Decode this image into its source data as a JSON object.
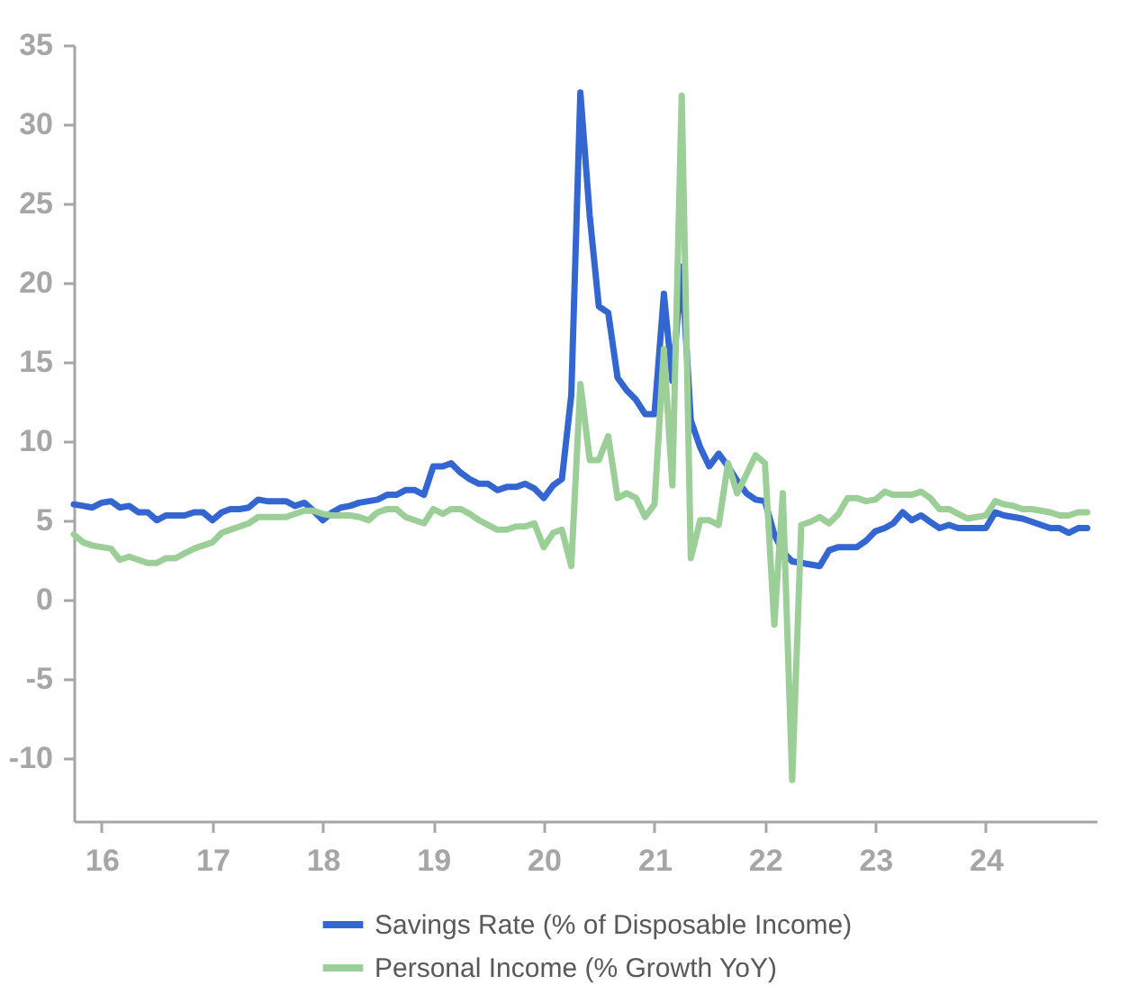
{
  "chart_data": {
    "type": "line",
    "x": [
      "2015-10",
      "2015-11",
      "2015-12",
      "2016-01",
      "2016-02",
      "2016-03",
      "2016-04",
      "2016-05",
      "2016-06",
      "2016-07",
      "2016-08",
      "2016-09",
      "2016-10",
      "2016-11",
      "2016-12",
      "2017-01",
      "2017-02",
      "2017-03",
      "2017-04",
      "2017-05",
      "2017-06",
      "2017-07",
      "2017-08",
      "2017-09",
      "2017-10",
      "2017-11",
      "2017-12",
      "2018-01",
      "2018-02",
      "2018-03",
      "2018-04",
      "2018-05",
      "2018-06",
      "2018-07",
      "2018-08",
      "2018-09",
      "2018-10",
      "2018-11",
      "2018-12",
      "2019-01",
      "2019-02",
      "2019-03",
      "2019-04",
      "2019-05",
      "2019-06",
      "2019-07",
      "2019-08",
      "2019-09",
      "2019-10",
      "2019-11",
      "2019-12",
      "2020-01",
      "2020-02",
      "2020-03",
      "2020-04",
      "2020-05",
      "2020-06",
      "2020-07",
      "2020-08",
      "2020-09",
      "2020-10",
      "2020-11",
      "2020-12",
      "2021-01",
      "2021-02",
      "2021-03",
      "2021-04",
      "2021-05",
      "2021-06",
      "2021-07",
      "2021-08",
      "2021-09",
      "2021-10",
      "2021-11",
      "2021-12",
      "2022-01",
      "2022-02",
      "2022-03",
      "2022-04",
      "2022-05",
      "2022-06",
      "2022-07",
      "2022-08",
      "2022-09",
      "2022-10",
      "2022-11",
      "2022-12",
      "2023-01",
      "2023-02",
      "2023-03",
      "2023-04",
      "2023-05",
      "2023-06",
      "2023-07",
      "2023-08",
      "2023-09",
      "2023-10",
      "2023-11",
      "2023-12",
      "2024-01",
      "2024-02",
      "2024-03",
      "2024-04",
      "2024-05",
      "2024-06",
      "2024-07",
      "2024-08",
      "2024-09",
      "2024-10",
      "2024-11",
      "2024-12"
    ],
    "series": [
      {
        "name": "Savings Rate (% of Disposable Income)",
        "color": "#3366d0",
        "values": [
          6.0,
          5.9,
          5.8,
          6.1,
          6.2,
          5.8,
          5.9,
          5.5,
          5.5,
          5.0,
          5.3,
          5.3,
          5.3,
          5.5,
          5.5,
          5.0,
          5.5,
          5.7,
          5.7,
          5.8,
          6.3,
          6.2,
          6.2,
          6.2,
          5.9,
          6.1,
          5.6,
          5.0,
          5.5,
          5.8,
          5.9,
          6.1,
          6.2,
          6.3,
          6.6,
          6.6,
          6.9,
          6.9,
          6.6,
          8.4,
          8.4,
          8.6,
          8.0,
          7.6,
          7.3,
          7.3,
          6.9,
          7.1,
          7.1,
          7.3,
          7.0,
          6.4,
          7.2,
          7.6,
          12.9,
          32.0,
          24.2,
          18.5,
          18.1,
          14.0,
          13.2,
          12.6,
          11.7,
          11.7,
          19.3,
          13.8,
          21.0,
          11.3,
          9.6,
          8.4,
          9.2,
          8.4,
          7.5,
          6.7,
          6.3,
          6.2,
          4.1,
          3.0,
          2.4,
          2.3,
          2.2,
          2.1,
          3.1,
          3.3,
          3.3,
          3.3,
          3.7,
          4.3,
          4.5,
          4.8,
          5.5,
          5.0,
          5.3,
          4.9,
          4.5,
          4.7,
          4.5,
          4.5,
          4.5,
          4.5,
          5.5,
          5.3,
          5.2,
          5.1,
          4.9,
          4.7,
          4.5,
          4.5,
          4.2,
          4.5,
          4.5
        ]
      },
      {
        "name": "Personal Income (% Growth YoY)",
        "color": "#9ccf98",
        "values": [
          4.1,
          3.6,
          3.4,
          3.3,
          3.2,
          2.5,
          2.7,
          2.5,
          2.3,
          2.3,
          2.6,
          2.6,
          2.9,
          3.2,
          3.4,
          3.6,
          4.2,
          4.4,
          4.6,
          4.8,
          5.2,
          5.2,
          5.2,
          5.2,
          5.4,
          5.6,
          5.6,
          5.4,
          5.3,
          5.3,
          5.3,
          5.2,
          5.0,
          5.5,
          5.7,
          5.7,
          5.2,
          5.0,
          4.8,
          5.7,
          5.4,
          5.7,
          5.7,
          5.4,
          5.0,
          4.7,
          4.4,
          4.4,
          4.6,
          4.6,
          4.8,
          3.3,
          4.2,
          4.4,
          2.1,
          13.6,
          8.8,
          8.8,
          10.3,
          6.4,
          6.7,
          6.4,
          5.2,
          6.0,
          15.8,
          7.2,
          31.8,
          2.6,
          5.0,
          5.0,
          4.7,
          8.6,
          6.7,
          7.9,
          9.1,
          8.6,
          -1.6,
          6.7,
          -11.4,
          4.7,
          4.9,
          5.2,
          4.8,
          5.4,
          6.4,
          6.4,
          6.2,
          6.3,
          6.8,
          6.6,
          6.6,
          6.6,
          6.8,
          6.4,
          5.7,
          5.7,
          5.4,
          5.1,
          5.2,
          5.3,
          6.2,
          6.0,
          5.9,
          5.7,
          5.7,
          5.6,
          5.5,
          5.3,
          5.3,
          5.5,
          5.5
        ]
      }
    ],
    "xlim": [
      "2015-10",
      "2025-01"
    ],
    "xticks": [
      {
        "value": "2016-01",
        "label": "16"
      },
      {
        "value": "2017-01",
        "label": "17"
      },
      {
        "value": "2018-01",
        "label": "18"
      },
      {
        "value": "2019-01",
        "label": "19"
      },
      {
        "value": "2020-01",
        "label": "20"
      },
      {
        "value": "2021-01",
        "label": "21"
      },
      {
        "value": "2022-01",
        "label": "22"
      },
      {
        "value": "2023-01",
        "label": "23"
      },
      {
        "value": "2024-01",
        "label": "24"
      }
    ],
    "ylim": [
      -14,
      35
    ],
    "yticks": [
      -10,
      -5,
      0,
      5,
      10,
      15,
      20,
      25,
      30,
      35
    ],
    "legend": "bottom"
  }
}
